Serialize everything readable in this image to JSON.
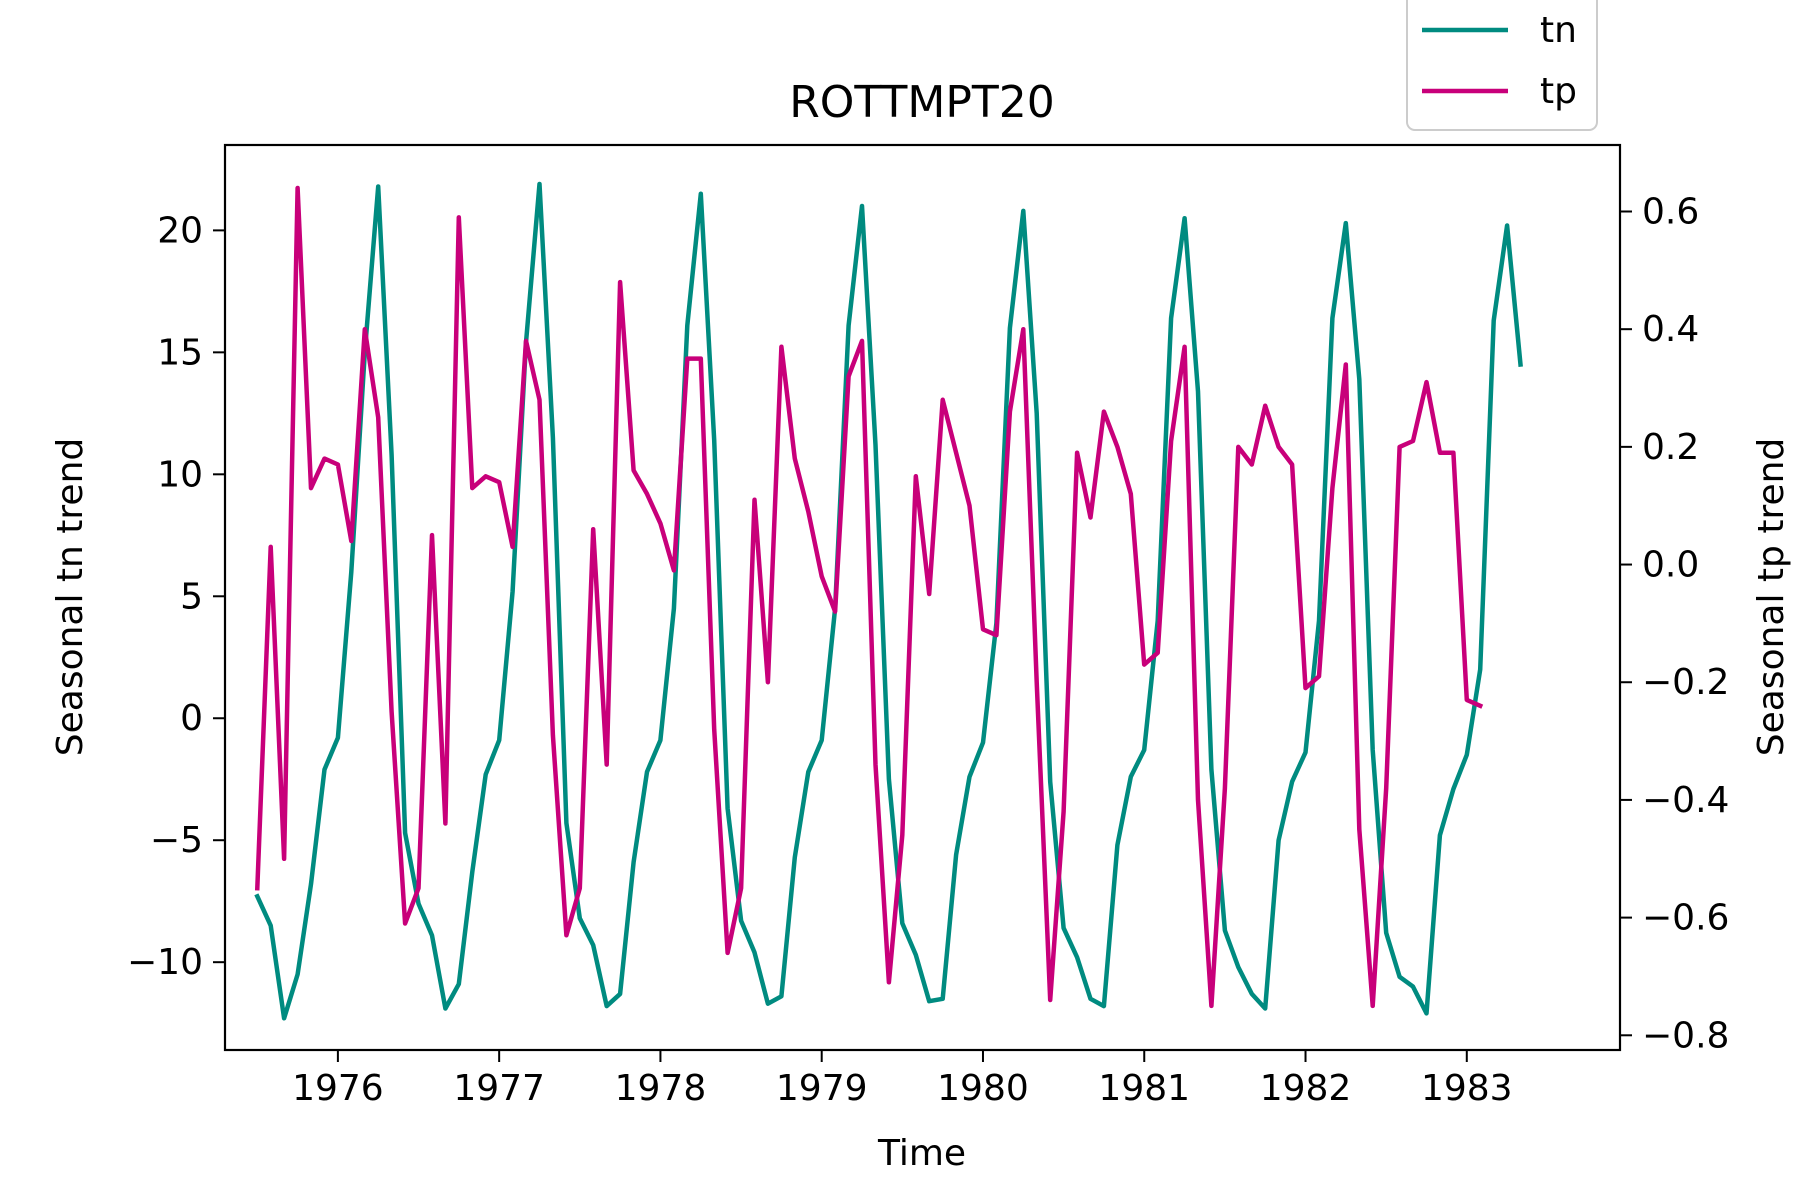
{
  "chart_data": {
    "type": "line",
    "title": "ROTTMPT20",
    "xlabel": "Time",
    "ylabel_left": "Seasonal tn trend",
    "ylabel_right": "Seasonal tp trend",
    "xlim": [
      1975.3,
      1983.95
    ],
    "ylim_left": [
      -13.6,
      23.5
    ],
    "ylim_right": [
      -0.825,
      0.713
    ],
    "x_ticks": [
      1976,
      1977,
      1978,
      1979,
      1980,
      1981,
      1982,
      1983
    ],
    "x_tick_labels": [
      "1976",
      "1977",
      "1978",
      "1979",
      "1980",
      "1981",
      "1982",
      "1983"
    ],
    "y_left_ticks": [
      -10,
      -5,
      0,
      5,
      10,
      15,
      20
    ],
    "y_left_tick_labels": [
      "−10",
      "−5",
      "0",
      "5",
      "10",
      "15",
      "20"
    ],
    "y_right_ticks": [
      -0.8,
      -0.6,
      -0.4,
      -0.2,
      0.0,
      0.2,
      0.4,
      0.6
    ],
    "y_right_tick_labels": [
      "−0.8",
      "−0.6",
      "−0.4",
      "−0.2",
      "0.0",
      "0.2",
      "0.4",
      "0.6"
    ],
    "legend": {
      "placement": "top-right, above plot",
      "entries": [
        "tn",
        "tp"
      ]
    },
    "grid": false,
    "start_year": 1975,
    "start_month": 7,
    "series": [
      {
        "name": "tn",
        "axis": "left",
        "color": "#008b80",
        "values": [
          -7.3,
          -8.5,
          -12.3,
          -10.5,
          -6.8,
          -2.1,
          -0.8,
          6.0,
          15.0,
          21.8,
          10.8,
          -4.7,
          -7.6,
          -8.9,
          -11.9,
          -10.9,
          -6.3,
          -2.3,
          -0.9,
          5.2,
          15.4,
          21.9,
          11.5,
          -4.3,
          -8.2,
          -9.3,
          -11.8,
          -11.3,
          -5.9,
          -2.2,
          -0.9,
          4.5,
          16.1,
          21.5,
          11.4,
          -3.7,
          -8.3,
          -9.6,
          -11.7,
          -11.4,
          -5.7,
          -2.2,
          -0.9,
          4.5,
          16.1,
          21.0,
          11.2,
          -2.5,
          -8.4,
          -9.7,
          -11.6,
          -11.5,
          -5.6,
          -2.4,
          -1.0,
          3.9,
          16.0,
          20.8,
          12.5,
          -2.6,
          -8.6,
          -9.8,
          -11.5,
          -11.8,
          -5.2,
          -2.4,
          -1.3,
          4.0,
          16.4,
          20.5,
          13.4,
          -2.1,
          -8.7,
          -10.2,
          -11.3,
          -11.9,
          -5.0,
          -2.6,
          -1.4,
          4.0,
          16.4,
          20.3,
          13.9,
          -1.3,
          -8.8,
          -10.6,
          -11.0,
          -12.1,
          -4.8,
          -2.9,
          -1.5,
          2.0,
          16.3,
          20.2,
          14.5
        ]
      },
      {
        "name": "tp",
        "axis": "right",
        "color": "#c8007a",
        "values": [
          -0.55,
          0.03,
          -0.5,
          0.64,
          0.13,
          0.18,
          0.17,
          0.04,
          0.4,
          0.25,
          -0.25,
          -0.61,
          -0.55,
          0.05,
          -0.44,
          0.59,
          0.13,
          0.15,
          0.14,
          0.03,
          0.38,
          0.28,
          -0.29,
          -0.63,
          -0.55,
          0.06,
          -0.34,
          0.48,
          0.16,
          0.12,
          0.07,
          -0.01,
          0.35,
          0.35,
          -0.28,
          -0.66,
          -0.55,
          0.11,
          -0.2,
          0.37,
          0.18,
          0.09,
          -0.02,
          -0.08,
          0.32,
          0.38,
          -0.34,
          -0.71,
          -0.46,
          0.15,
          -0.05,
          0.28,
          0.19,
          0.1,
          -0.11,
          -0.12,
          0.26,
          0.4,
          -0.2,
          -0.74,
          -0.42,
          0.19,
          0.08,
          0.26,
          0.2,
          0.12,
          -0.17,
          -0.15,
          0.21,
          0.37,
          -0.4,
          -0.75,
          -0.38,
          0.2,
          0.17,
          0.27,
          0.2,
          0.17,
          -0.21,
          -0.19,
          0.13,
          0.34,
          -0.45,
          -0.75,
          -0.38,
          0.2,
          0.21,
          0.31,
          0.19,
          0.19,
          -0.23,
          -0.24
        ]
      }
    ]
  }
}
